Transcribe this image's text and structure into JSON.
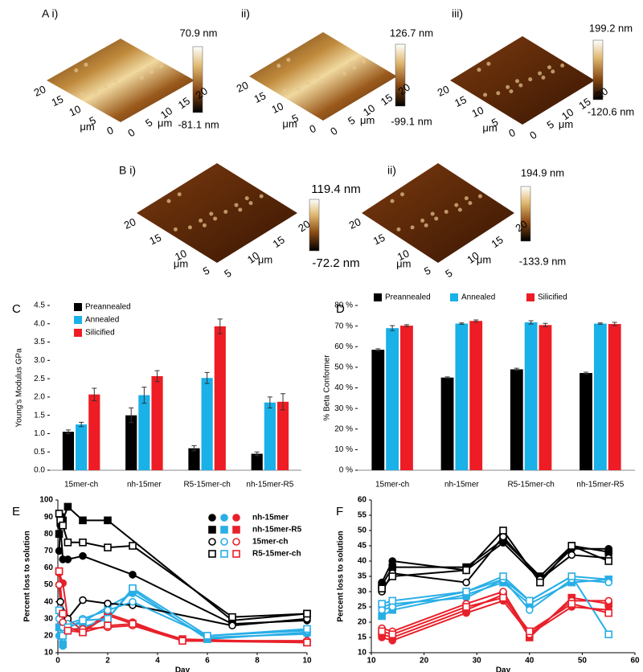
{
  "afm_panels": [
    {
      "label": "A i)",
      "scale_max": "70.9 nm",
      "scale_min": "-81.1 nm",
      "ticks_left": [
        20,
        15,
        10,
        5,
        0
      ],
      "ticks_right": [
        0,
        5,
        10,
        15,
        20
      ],
      "unit_left": "μm",
      "unit_right": "μm"
    },
    {
      "label": "ii)",
      "scale_max": "126.7 nm",
      "scale_min": "-99.1 nm",
      "ticks_left": [
        20,
        15,
        10,
        5,
        0
      ],
      "ticks_right": [
        0,
        5,
        10,
        15,
        20
      ],
      "unit_left": "μm",
      "unit_right": "μm"
    },
    {
      "label": "iii)",
      "scale_max": "199.2 nm",
      "scale_min": "-120.6 nm",
      "ticks_left": [
        20,
        15,
        10,
        5,
        0
      ],
      "ticks_right": [
        0,
        5,
        10,
        15,
        20
      ],
      "unit_left": "μm",
      "unit_right": "μm"
    },
    {
      "label": "B i)",
      "scale_max": "119.4 nm",
      "scale_min": "-72.2 nm",
      "ticks_left": [
        20,
        15,
        10,
        5
      ],
      "ticks_right": [
        5,
        10,
        15,
        20
      ],
      "unit_left": "μm",
      "unit_right": "μm"
    },
    {
      "label": "ii)",
      "scale_max": "194.9 nm",
      "scale_min": "-133.9 nm",
      "ticks_left": [
        20,
        15,
        10,
        5
      ],
      "ticks_right": [
        5,
        10,
        15,
        20
      ],
      "unit_left": "μm",
      "unit_right": "μm"
    }
  ],
  "chart_data": [
    {
      "type": "bar",
      "panel_label": "C",
      "y_label": "Young's Modulus GPa",
      "categories": [
        "15mer-ch",
        "nh-15mer",
        "R5-15mer-ch",
        "nh-15mer-R5"
      ],
      "series": [
        {
          "name": "Preannealed",
          "color": "#000000",
          "values": [
            1.05,
            1.5,
            0.6,
            0.45
          ],
          "errors": [
            0.05,
            0.2,
            0.07,
            0.05
          ]
        },
        {
          "name": "Annealed",
          "color": "#1ab0e8",
          "values": [
            1.25,
            2.05,
            2.52,
            1.85
          ],
          "errors": [
            0.06,
            0.22,
            0.15,
            0.15
          ]
        },
        {
          "name": "Silicified",
          "color": "#ee1c24",
          "values": [
            2.07,
            2.57,
            3.93,
            1.87
          ],
          "errors": [
            0.17,
            0.15,
            0.2,
            0.22
          ]
        }
      ],
      "ylim": [
        0,
        4.5
      ],
      "yticks": [
        {
          "value": 0,
          "label": "0.0"
        },
        0.5,
        {
          "value": 1,
          "label": "1.0"
        },
        1.5,
        {
          "value": 2,
          "label": "2.0"
        },
        2.5,
        {
          "value": 3,
          "label": "3.0"
        },
        3.5,
        {
          "value": 4,
          "label": "4.0"
        },
        4.5
      ],
      "legend": "upper left"
    },
    {
      "type": "bar",
      "panel_label": "D",
      "y_label": "% Beta Conformer",
      "categories": [
        "15mer-ch",
        "nh-15mer",
        "R5-15mer-ch",
        "nh-15mer-R5"
      ],
      "series": [
        {
          "name": "Preannealed",
          "color": "#000000",
          "values": [
            58.5,
            45,
            49,
            47.2
          ],
          "errors": [
            0.5,
            0.3,
            0.5,
            0.4
          ]
        },
        {
          "name": "Annealed",
          "color": "#1ab0e8",
          "values": [
            69,
            71.2,
            71.8,
            71.2
          ],
          "errors": [
            1.2,
            0.3,
            0.8,
            0.3
          ]
        },
        {
          "name": "Silicified",
          "color": "#ee1c24",
          "values": [
            70.2,
            72.5,
            70.5,
            71
          ],
          "errors": [
            0.5,
            0.5,
            0.8,
            0.8
          ]
        }
      ],
      "ylim": [
        0,
        80
      ],
      "yticks": [
        {
          "value": 0,
          "label": "0 %"
        },
        {
          "value": 10,
          "label": "10 %"
        },
        {
          "value": 20,
          "label": "20 %"
        },
        {
          "value": 30,
          "label": "30 %"
        },
        {
          "value": 40,
          "label": "40 %"
        },
        {
          "value": 50,
          "label": "50 %"
        },
        {
          "value": 60,
          "label": "60 %"
        },
        {
          "value": 70,
          "label": "70 %"
        },
        {
          "value": 80,
          "label": "80 %"
        }
      ],
      "legend": "top"
    },
    {
      "type": "line",
      "panel_label": "E",
      "x_label": "Day",
      "y_label": "Percent loss to solution",
      "xlim": [
        0,
        10
      ],
      "xticks": [
        0,
        2,
        4,
        6,
        8,
        10
      ],
      "ylim": [
        10,
        100
      ],
      "yticks": [
        10,
        20,
        30,
        40,
        50,
        60,
        70,
        80,
        90,
        100
      ],
      "legend": "upper right",
      "series": [
        {
          "name": "nh-15mer",
          "color": "#000000",
          "marker": "circle",
          "filled": true,
          "x": [
            0.05,
            0.1,
            0.2,
            0.4,
            1,
            3,
            7,
            10
          ],
          "values": [
            70,
            85,
            65,
            65,
            67,
            56,
            27,
            29
          ]
        },
        {
          "name": "nh-15mer",
          "color": "#29aee6",
          "marker": "circle",
          "filled": true,
          "x": [
            0.05,
            0.2,
            0.4,
            1,
            2,
            3,
            6,
            10
          ],
          "values": [
            20,
            14,
            25,
            28,
            37,
            45,
            19,
            21
          ]
        },
        {
          "name": "nh-15mer",
          "color": "#e8202a",
          "marker": "circle",
          "filled": true,
          "x": [
            0.05,
            0.2,
            0.4,
            1,
            2,
            3,
            5,
            10
          ],
          "values": [
            57,
            51,
            30,
            23,
            33,
            28,
            17,
            17
          ]
        },
        {
          "name": "nh-15mer-R5",
          "color": "#000000",
          "marker": "square",
          "filled": true,
          "x": [
            0.05,
            0.1,
            0.2,
            0.4,
            1,
            2,
            7,
            10
          ],
          "values": [
            80,
            90,
            88,
            96,
            88,
            88,
            29,
            33
          ]
        },
        {
          "name": "nh-15mer-R5",
          "color": "#29aee6",
          "marker": "square",
          "filled": true,
          "x": [
            0.05,
            0.2,
            0.4,
            1,
            2,
            3,
            6,
            10
          ],
          "values": [
            25,
            15,
            23,
            25,
            30,
            47,
            18,
            22
          ]
        },
        {
          "name": "nh-15mer-R5",
          "color": "#e8202a",
          "marker": "square",
          "filled": true,
          "x": [
            0.05,
            0.2,
            0.4,
            1,
            2,
            3,
            5,
            10
          ],
          "values": [
            58,
            30,
            25,
            22,
            32,
            27,
            18,
            16
          ]
        },
        {
          "name": "15mer-ch",
          "color": "#000000",
          "marker": "circle",
          "filled": false,
          "x": [
            0.05,
            0.1,
            0.4,
            1,
            2,
            3,
            7,
            10
          ],
          "values": [
            50,
            40,
            30,
            41,
            39,
            38,
            26,
            30
          ]
        },
        {
          "name": "15mer-ch",
          "color": "#29aee6",
          "marker": "circle",
          "filled": false,
          "x": [
            0.05,
            0.2,
            0.4,
            1,
            2,
            3,
            6,
            10
          ],
          "values": [
            30,
            25,
            27,
            30,
            35,
            40,
            20,
            23
          ]
        },
        {
          "name": "15mer-ch",
          "color": "#e8202a",
          "marker": "circle",
          "filled": false,
          "x": [
            0.05,
            0.2,
            0.4,
            1,
            2,
            3,
            5,
            10
          ],
          "values": [
            50,
            28,
            24,
            24,
            25,
            26,
            17,
            17
          ]
        },
        {
          "name": "R5-15mer-ch",
          "color": "#000000",
          "marker": "square",
          "filled": false,
          "x": [
            0.05,
            0.1,
            0.2,
            0.4,
            1,
            2,
            3,
            7,
            10
          ],
          "values": [
            92,
            88,
            85,
            75,
            75,
            72,
            73,
            31,
            33
          ]
        },
        {
          "name": "R5-15mer-ch",
          "color": "#29aee6",
          "marker": "square",
          "filled": false,
          "x": [
            0.05,
            0.2,
            0.4,
            1,
            2,
            3,
            6,
            10
          ],
          "values": [
            35,
            20,
            25,
            29,
            30,
            48,
            20,
            24
          ]
        },
        {
          "name": "R5-15mer-ch",
          "color": "#e8202a",
          "marker": "square",
          "filled": false,
          "x": [
            0.05,
            0.2,
            0.4,
            1,
            2,
            3,
            5,
            10
          ],
          "values": [
            58,
            33,
            23,
            22,
            26,
            27,
            17,
            16
          ]
        }
      ]
    },
    {
      "type": "line",
      "panel_label": "F",
      "x_label": "Day",
      "y_label": "Percent loss to solution",
      "xlim": [
        10,
        60
      ],
      "xticks": [
        10,
        20,
        30,
        40,
        50,
        60
      ],
      "ylim": [
        10,
        60
      ],
      "yticks": [
        10,
        15,
        20,
        25,
        30,
        35,
        40,
        45,
        50,
        55,
        60
      ],
      "series": [
        {
          "color": "#000000",
          "marker": "circle",
          "filled": true,
          "x": [
            12,
            14,
            28,
            35,
            42,
            48,
            55
          ],
          "values": [
            33,
            40,
            37,
            46,
            34,
            44,
            44
          ]
        },
        {
          "color": "#29aee6",
          "marker": "circle",
          "filled": true,
          "x": [
            12,
            14,
            28,
            35,
            40,
            48,
            55
          ],
          "values": [
            25,
            26,
            28,
            34,
            27,
            35,
            34
          ]
        },
        {
          "color": "#e8202a",
          "marker": "circle",
          "filled": true,
          "x": [
            12,
            14,
            28,
            35,
            40,
            48,
            55
          ],
          "values": [
            15,
            14,
            23,
            27,
            16,
            25,
            24
          ]
        },
        {
          "color": "#000000",
          "marker": "square",
          "filled": true,
          "x": [
            12,
            14,
            28,
            35,
            42,
            48,
            55
          ],
          "values": [
            32,
            38,
            38,
            47,
            35,
            45,
            43
          ]
        },
        {
          "color": "#29aee6",
          "marker": "square",
          "filled": true,
          "x": [
            12,
            14,
            28,
            35,
            40,
            48,
            55
          ],
          "values": [
            22,
            24,
            29,
            33,
            26,
            33,
            34
          ]
        },
        {
          "color": "#e8202a",
          "marker": "square",
          "filled": true,
          "x": [
            12,
            14,
            28,
            35,
            40,
            48,
            55
          ],
          "values": [
            16,
            15,
            24,
            29,
            15,
            28,
            26
          ]
        },
        {
          "color": "#000000",
          "marker": "circle",
          "filled": false,
          "x": [
            12,
            14,
            28,
            35,
            42,
            48,
            55
          ],
          "values": [
            30,
            36,
            33,
            48,
            34,
            42,
            41
          ]
        },
        {
          "color": "#29aee6",
          "marker": "circle",
          "filled": false,
          "x": [
            12,
            14,
            28,
            35,
            40,
            48,
            55
          ],
          "values": [
            24,
            25,
            30,
            34,
            24,
            34,
            33
          ]
        },
        {
          "color": "#e8202a",
          "marker": "circle",
          "filled": false,
          "x": [
            12,
            14,
            28,
            35,
            40,
            48,
            55
          ],
          "values": [
            18,
            17,
            26,
            30,
            16,
            27,
            27
          ]
        },
        {
          "color": "#000000",
          "marker": "square",
          "filled": false,
          "x": [
            12,
            14,
            28,
            35,
            42,
            48,
            55
          ],
          "values": [
            31,
            35,
            37,
            50,
            33,
            45,
            40
          ]
        },
        {
          "color": "#29aee6",
          "marker": "square",
          "filled": false,
          "x": [
            12,
            14,
            28,
            35,
            40,
            48,
            55
          ],
          "values": [
            26,
            27,
            30,
            35,
            27,
            35,
            16
          ]
        },
        {
          "color": "#e8202a",
          "marker": "square",
          "filled": false,
          "x": [
            12,
            14,
            28,
            35,
            40,
            48,
            55
          ],
          "values": [
            17,
            16,
            25,
            28,
            17,
            26,
            23
          ]
        }
      ]
    }
  ]
}
